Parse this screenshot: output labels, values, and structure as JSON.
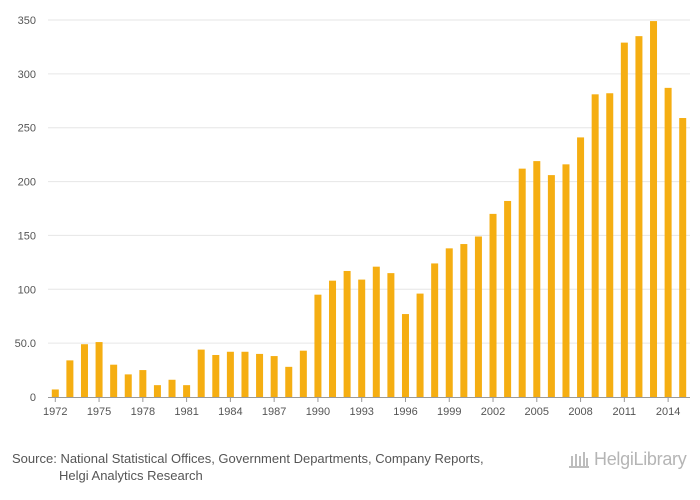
{
  "colors": {
    "bar": "#f5ae12",
    "grid": "#e6e6e6",
    "text": "#555555",
    "logo": "#b5b5b5"
  },
  "source": {
    "prefix": "Source:",
    "line1": "National Statistical Offices, Government Departments, Company Reports,",
    "line2": "Helgi Analytics Research"
  },
  "logo": {
    "text": "HelgiLibrary",
    "icon": "library-building-icon"
  },
  "chart_data": {
    "type": "bar",
    "title": "",
    "xlabel": "",
    "ylabel": "",
    "ylim": [
      0,
      350
    ],
    "y_ticks": [
      0,
      50,
      100,
      150,
      200,
      250,
      300,
      350
    ],
    "y_tick_labels": [
      "0",
      "50.0",
      "100",
      "150",
      "200",
      "250",
      "300",
      "350"
    ],
    "x_tick_labels": [
      "1972",
      "1975",
      "1978",
      "1981",
      "1984",
      "1987",
      "1990",
      "1993",
      "1996",
      "1999",
      "2002",
      "2005",
      "2008",
      "2011",
      "2014"
    ],
    "categories": [
      1972,
      1973,
      1974,
      1975,
      1976,
      1977,
      1978,
      1979,
      1980,
      1981,
      1982,
      1983,
      1984,
      1985,
      1986,
      1987,
      1988,
      1989,
      1990,
      1991,
      1992,
      1993,
      1994,
      1995,
      1996,
      1997,
      1998,
      1999,
      2000,
      2001,
      2002,
      2003,
      2004,
      2005,
      2006,
      2007,
      2008,
      2009,
      2010,
      2011,
      2012,
      2013,
      2014,
      2015
    ],
    "values": [
      7,
      34,
      49,
      51,
      30,
      21,
      25,
      11,
      16,
      11,
      44,
      39,
      42,
      42,
      40,
      38,
      28,
      43,
      95,
      108,
      117,
      109,
      121,
      115,
      77,
      96,
      124,
      138,
      142,
      149,
      170,
      182,
      212,
      219,
      206,
      216,
      241,
      281,
      282,
      329,
      335,
      349,
      287,
      259
    ]
  }
}
